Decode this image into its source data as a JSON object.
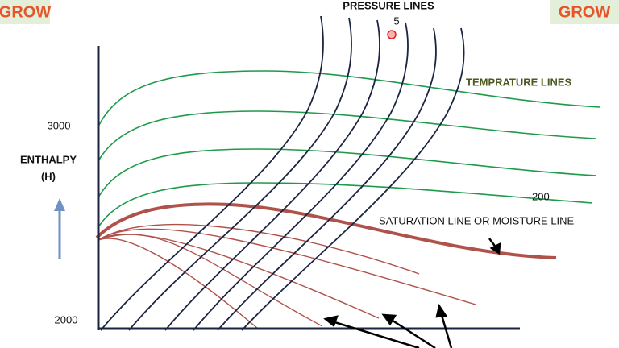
{
  "badges": [
    "GROW",
    "GROW"
  ],
  "labels": {
    "pressure_lines": "PRESSURE LINES",
    "pressure_value": "5",
    "temperature_lines": "TEMPRATURE LINES",
    "temperature_value": "200",
    "saturation_line": "SATURATION LINE OR MOISTURE LINE",
    "y_axis": [
      "ENTHALPY",
      "(H)"
    ],
    "y_top": "3000",
    "y_bottom": "2000"
  }
}
